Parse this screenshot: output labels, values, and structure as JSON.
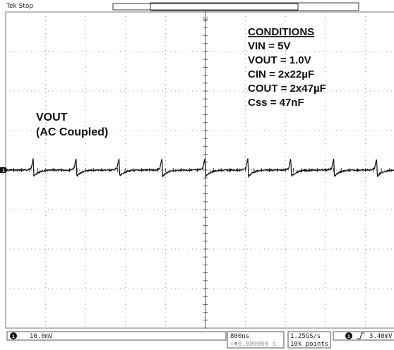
{
  "header": {
    "status": "Tek Stop"
  },
  "trigger_marker": "U",
  "channel_marker": "1",
  "annotations": {
    "conditions_title": "CONDITIONS",
    "conditions": [
      "VIN = 5V",
      "VOUT = 1.0V",
      "CIN = 2x22µF",
      "COUT = 2x47µF",
      "Css = 47nF"
    ],
    "trace_label": [
      "VOUT",
      "(AC Coupled)"
    ]
  },
  "status_bar": {
    "channel": "1",
    "scale": "10.0mV",
    "timebase": "800ns",
    "position": "+▼0.000000 s",
    "sample_rate": "1.25GS/s",
    "record_length": "10k points",
    "trigger_channel": "1",
    "trigger_level": "3.40mV"
  }
}
